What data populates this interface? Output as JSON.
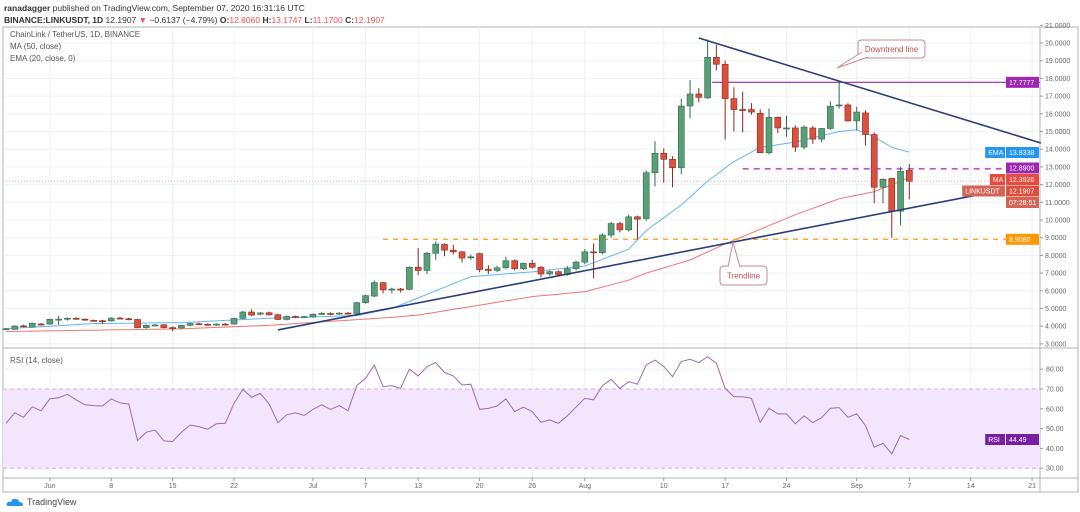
{
  "header": {
    "author": "ranadagger",
    "published": "published on TradingView.com, September 07, 2020 16:31:16 UTC",
    "symbol": "BINANCE:LINKUSDT, 1D",
    "last": "12.1907",
    "change": "−0.6137 (−4.79%)",
    "o_label": "O:",
    "o": "12.8060",
    "h_label": "H:",
    "h": "13.1747",
    "l_label": "L:",
    "l": "11.1700",
    "c_label": "C:",
    "c": "12.1907",
    "direction_icon": "triangle-down-icon"
  },
  "legend": {
    "title": "ChainLink / TetherUS, 1D, BINANCE",
    "ma": "MA (50, close)",
    "ema": "EMA (20, close, 0)",
    "rsi": "RSI (14, close)"
  },
  "colors": {
    "up": "#5a9e78",
    "down": "#d9503f",
    "ema": "#2196f3",
    "ma": "#ef5350",
    "trendline": "#2a3f7a",
    "resistance": "#9c27b0",
    "support": "#ff9800",
    "rsi": "#9c6bb5",
    "rsi_band": "#f3e5fc"
  },
  "price_axis": {
    "ticks": [
      "3.0000",
      "4.0000",
      "5.0000",
      "6.0000",
      "7.0000",
      "8.0000",
      "9.0000",
      "10.0000",
      "11.0000",
      "12.0000",
      "13.0000",
      "14.0000",
      "15.0000",
      "16.0000",
      "17.0000",
      "18.0000",
      "19.0000",
      "20.0000",
      "21.0000"
    ]
  },
  "rsi_axis": {
    "ticks": [
      "30.00",
      "40.00",
      "50.00",
      "60.00",
      "70.00",
      "80.00"
    ],
    "upper": 70,
    "lower": 30
  },
  "time_axis": {
    "ticks": [
      "Jun",
      "8",
      "15",
      "22",
      "Jul",
      "7",
      "13",
      "20",
      "26",
      "Aug",
      "10",
      "17",
      "24",
      "Sep",
      "7",
      "14",
      "21"
    ]
  },
  "price_labels": {
    "resistance": {
      "value": "17.7777"
    },
    "ema": {
      "tag": "EMA",
      "value": "13.8338"
    },
    "level": {
      "value": "12.8900"
    },
    "ma": {
      "tag": "MA",
      "value": "12.3926"
    },
    "last": {
      "tag": "LINKUSDT",
      "value": "12.1907",
      "countdown": "07:28:51"
    },
    "support": {
      "value": "8.9080"
    },
    "rsi": {
      "tag": "RSI",
      "value": "44.49"
    }
  },
  "annotations": {
    "downtrend": "Downtrend line",
    "trendline": "Trendline"
  },
  "branding": {
    "name": "TradingView",
    "logo_icon": "tradingview-cloud-icon"
  },
  "chart_data": {
    "type": "candlestick",
    "interval": "1D",
    "ohlc": [
      [
        3.84,
        3.9,
        3.78,
        3.86
      ],
      [
        3.82,
        4.05,
        3.8,
        4.01
      ],
      [
        4.02,
        4.08,
        3.94,
        3.97
      ],
      [
        3.95,
        4.2,
        3.92,
        4.17
      ],
      [
        4.12,
        4.18,
        4.05,
        4.1
      ],
      [
        4.12,
        4.42,
        4.08,
        4.39
      ],
      [
        4.38,
        4.58,
        4.07,
        4.4
      ],
      [
        4.4,
        4.5,
        4.32,
        4.45
      ],
      [
        4.45,
        4.5,
        4.36,
        4.4
      ],
      [
        4.4,
        4.44,
        4.3,
        4.35
      ],
      [
        4.33,
        4.38,
        4.26,
        4.31
      ],
      [
        4.31,
        4.36,
        4.12,
        4.3
      ],
      [
        4.3,
        4.5,
        4.26,
        4.46
      ],
      [
        4.46,
        4.52,
        4.38,
        4.42
      ],
      [
        4.42,
        4.47,
        4.33,
        4.38
      ],
      [
        4.38,
        4.42,
        3.88,
        3.92
      ],
      [
        3.92,
        4.1,
        3.86,
        4.05
      ],
      [
        4.05,
        4.12,
        3.98,
        4.07
      ],
      [
        4.08,
        4.12,
        3.88,
        3.92
      ],
      [
        3.92,
        3.98,
        3.72,
        3.9
      ],
      [
        3.9,
        4.08,
        3.85,
        4.05
      ],
      [
        4.05,
        4.2,
        4.0,
        4.15
      ],
      [
        4.14,
        4.2,
        4.06,
        4.12
      ],
      [
        4.11,
        4.16,
        4.03,
        4.08
      ],
      [
        4.08,
        4.16,
        4.03,
        4.12
      ],
      [
        4.12,
        4.17,
        4.05,
        4.1
      ],
      [
        4.12,
        4.48,
        4.08,
        4.44
      ],
      [
        4.44,
        4.86,
        4.4,
        4.8
      ],
      [
        4.8,
        4.95,
        4.58,
        4.63
      ],
      [
        4.68,
        4.8,
        4.62,
        4.75
      ],
      [
        4.76,
        4.82,
        4.6,
        4.64
      ],
      [
        4.65,
        4.7,
        4.34,
        4.38
      ],
      [
        4.38,
        4.6,
        4.33,
        4.55
      ],
      [
        4.55,
        4.6,
        4.47,
        4.52
      ],
      [
        4.52,
        4.58,
        4.46,
        4.54
      ],
      [
        4.52,
        4.72,
        4.48,
        4.68
      ],
      [
        4.7,
        4.8,
        4.64,
        4.72
      ],
      [
        4.72,
        4.78,
        4.62,
        4.7
      ],
      [
        4.7,
        4.78,
        4.64,
        4.74
      ],
      [
        4.74,
        4.8,
        4.66,
        4.72
      ],
      [
        4.72,
        5.38,
        4.68,
        5.33
      ],
      [
        5.33,
        5.78,
        5.28,
        5.73
      ],
      [
        5.7,
        6.58,
        5.65,
        6.46
      ],
      [
        6.46,
        6.5,
        5.85,
        6.05
      ],
      [
        6.05,
        6.18,
        5.85,
        6.1
      ],
      [
        6.1,
        6.16,
        5.9,
        6.08
      ],
      [
        6.08,
        7.38,
        6.04,
        7.33
      ],
      [
        7.33,
        8.42,
        6.9,
        7.15
      ],
      [
        7.15,
        8.2,
        6.95,
        8.12
      ],
      [
        8.12,
        8.8,
        7.75,
        8.64
      ],
      [
        8.62,
        8.68,
        7.95,
        8.3
      ],
      [
        8.3,
        8.6,
        8.05,
        8.2
      ],
      [
        8.2,
        8.25,
        7.6,
        7.85
      ],
      [
        7.88,
        8.05,
        7.75,
        7.92
      ],
      [
        8.1,
        8.15,
        7.05,
        7.2
      ],
      [
        7.22,
        7.45,
        6.95,
        7.15
      ],
      [
        7.15,
        7.4,
        7.05,
        7.3
      ],
      [
        7.3,
        7.92,
        7.22,
        7.7
      ],
      [
        7.7,
        7.78,
        7.15,
        7.25
      ],
      [
        7.25,
        7.6,
        7.18,
        7.55
      ],
      [
        7.55,
        7.75,
        7.25,
        7.33
      ],
      [
        7.33,
        7.4,
        6.75,
        6.95
      ],
      [
        6.95,
        7.15,
        6.85,
        7.08
      ],
      [
        7.08,
        7.15,
        6.85,
        6.92
      ],
      [
        6.92,
        7.4,
        6.85,
        7.25
      ],
      [
        7.25,
        7.7,
        7.15,
        7.62
      ],
      [
        7.62,
        8.35,
        7.5,
        8.2
      ],
      [
        8.2,
        8.68,
        6.7,
        8.15
      ],
      [
        8.15,
        9.25,
        8.05,
        9.15
      ],
      [
        9.15,
        9.9,
        9.0,
        9.8
      ],
      [
        9.8,
        9.9,
        9.3,
        9.44
      ],
      [
        9.44,
        10.3,
        9.35,
        10.18
      ],
      [
        10.18,
        10.25,
        8.9,
        10.05
      ],
      [
        10.08,
        12.8,
        9.95,
        12.67
      ],
      [
        12.67,
        14.45,
        11.9,
        13.77
      ],
      [
        13.77,
        14.05,
        12.1,
        13.43
      ],
      [
        13.43,
        13.6,
        11.85,
        12.95
      ],
      [
        12.95,
        16.85,
        12.6,
        16.44
      ],
      [
        16.44,
        17.9,
        15.75,
        17.12
      ],
      [
        17.12,
        17.45,
        16.65,
        16.93
      ],
      [
        16.9,
        20.2,
        16.85,
        19.19
      ],
      [
        19.19,
        19.9,
        18.45,
        18.8
      ],
      [
        18.8,
        19.0,
        14.55,
        16.86
      ],
      [
        16.86,
        17.5,
        15.0,
        16.24
      ],
      [
        16.24,
        17.25,
        14.95,
        16.2
      ],
      [
        16.24,
        16.6,
        15.95,
        16.1
      ],
      [
        16.03,
        16.25,
        13.8,
        13.8
      ],
      [
        13.8,
        16.3,
        13.7,
        15.8
      ],
      [
        15.8,
        15.85,
        14.9,
        15.2
      ],
      [
        15.2,
        15.9,
        14.7,
        15.2
      ],
      [
        15.2,
        15.35,
        13.85,
        14.12
      ],
      [
        14.12,
        15.35,
        14.0,
        15.25
      ],
      [
        15.2,
        15.3,
        14.3,
        14.57
      ],
      [
        14.57,
        15.2,
        14.4,
        15.17
      ],
      [
        15.17,
        16.7,
        15.1,
        16.43
      ],
      [
        16.45,
        17.8,
        16.3,
        16.5
      ],
      [
        16.5,
        16.6,
        15.55,
        15.6
      ],
      [
        15.6,
        16.4,
        15.05,
        16.1
      ],
      [
        16.05,
        16.2,
        14.2,
        14.83
      ],
      [
        14.83,
        14.95,
        10.95,
        11.85
      ],
      [
        11.85,
        12.35,
        10.95,
        12.3
      ],
      [
        12.35,
        12.35,
        9.0,
        10.5
      ],
      [
        10.5,
        13.0,
        9.7,
        12.75
      ],
      [
        12.806,
        13.1747,
        11.17,
        12.1907
      ]
    ],
    "ema20": [
      [
        0,
        3.85
      ],
      [
        10,
        4.15
      ],
      [
        20,
        4.2
      ],
      [
        30,
        4.45
      ],
      [
        40,
        4.6
      ],
      [
        44,
        5.0
      ],
      [
        47,
        5.6
      ],
      [
        53,
        6.8
      ],
      [
        60,
        7.07
      ],
      [
        66,
        7.4
      ],
      [
        71,
        8.35
      ],
      [
        73,
        9.4
      ],
      [
        77,
        10.85
      ],
      [
        80,
        12.2
      ],
      [
        83,
        13.3
      ],
      [
        86,
        14.1
      ],
      [
        90,
        14.4
      ],
      [
        95,
        15.0
      ],
      [
        97,
        15.1
      ],
      [
        99,
        14.7
      ],
      [
        101,
        14.1
      ],
      [
        103,
        13.8338
      ]
    ],
    "ma50": [
      [
        0,
        3.7
      ],
      [
        20,
        3.85
      ],
      [
        30,
        4.05
      ],
      [
        44,
        4.5
      ],
      [
        47,
        4.63
      ],
      [
        60,
        5.67
      ],
      [
        66,
        5.95
      ],
      [
        71,
        6.6
      ],
      [
        73,
        7.0
      ],
      [
        78,
        7.74
      ],
      [
        82,
        8.65
      ],
      [
        90,
        10.3
      ],
      [
        95,
        11.2
      ],
      [
        99,
        11.6
      ],
      [
        103,
        12.3926
      ]
    ],
    "rsi": [
      52.7,
      58,
      55.7,
      61,
      59,
      65,
      65.6,
      67.3,
      64.5,
      62,
      61.6,
      61.4,
      65,
      63,
      62.4,
      44,
      48.2,
      49.3,
      43.8,
      43.5,
      48.2,
      51.8,
      51,
      49.7,
      52.4,
      52.7,
      62.8,
      69.8,
      65.8,
      67.8,
      62.4,
      53,
      56.9,
      58,
      56.6,
      59.7,
      62,
      59.7,
      61.6,
      59,
      71.7,
      75.4,
      82.1,
      71.2,
      71.7,
      70.3,
      80,
      76.6,
      81.3,
      83.4,
      78.4,
      76.6,
      72,
      72.4,
      59.7,
      60.2,
      61.4,
      65,
      58.6,
      60.8,
      58.6,
      53.2,
      54.4,
      52.7,
      56.4,
      60.8,
      65.3,
      64.5,
      71.7,
      74.9,
      70.3,
      73.7,
      72.5,
      82.1,
      84.6,
      81.3,
      76.2,
      83.9,
      85,
      83.3,
      86.3,
      83,
      70.3,
      66.1,
      66.1,
      65.3,
      53.2,
      60.3,
      57.4,
      57.4,
      52.4,
      56.4,
      53,
      55.5,
      60.3,
      60.6,
      55.7,
      57.4,
      51.5,
      40.6,
      42.6,
      37.2,
      46.5,
      44.49
    ],
    "drawings": {
      "uptrend_line": {
        "from": [
          31,
          3.79
        ],
        "to": [
          112,
          11.53
        ]
      },
      "downtrend_line": {
        "from": [
          79,
          20.28
        ],
        "to": [
          118,
          14.35
        ]
      },
      "resistance_level": {
        "price": 17.7777,
        "from_bar": 80.5
      },
      "dashed_level": {
        "price": 12.89,
        "from_bar": 84
      },
      "support_level": {
        "price": 8.908,
        "from_bar": 43
      }
    },
    "price_range": [
      2.6,
      21.2
    ],
    "rsi_range": [
      26,
      92
    ]
  }
}
